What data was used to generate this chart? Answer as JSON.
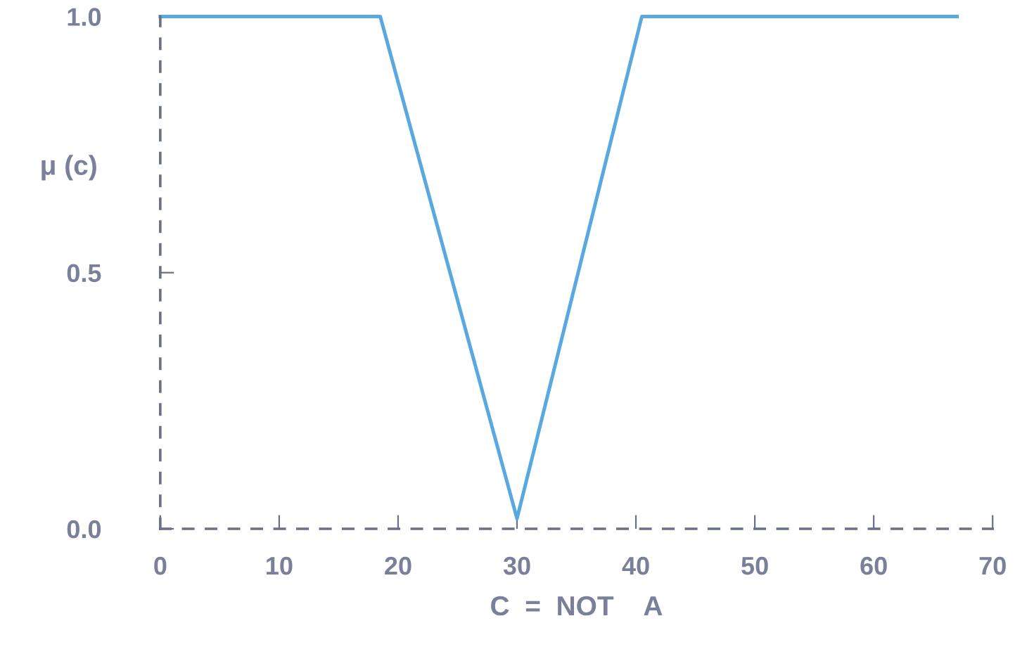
{
  "chart_data": {
    "type": "line",
    "xlabel": "C  =  NOT    A",
    "ylabel": "μ (c)",
    "x": [
      0,
      18.5,
      30,
      40.5,
      67
    ],
    "series": [
      {
        "color": "#5aa8e0",
        "values": [
          1.0,
          1.0,
          0.02,
          1.0,
          1.0
        ]
      }
    ],
    "xlim": [
      0,
      70
    ],
    "ylim": [
      0,
      1.0
    ],
    "xticks": [
      0,
      10,
      20,
      30,
      40,
      50,
      60,
      70
    ],
    "yticks": [
      {
        "value": 0,
        "label": "0.0"
      },
      {
        "value": 0.5,
        "label": "0.5"
      },
      {
        "value": 1.0,
        "label": "1.0"
      }
    ],
    "grid": false,
    "legend": false,
    "marker": "none",
    "line_style": "solid"
  }
}
